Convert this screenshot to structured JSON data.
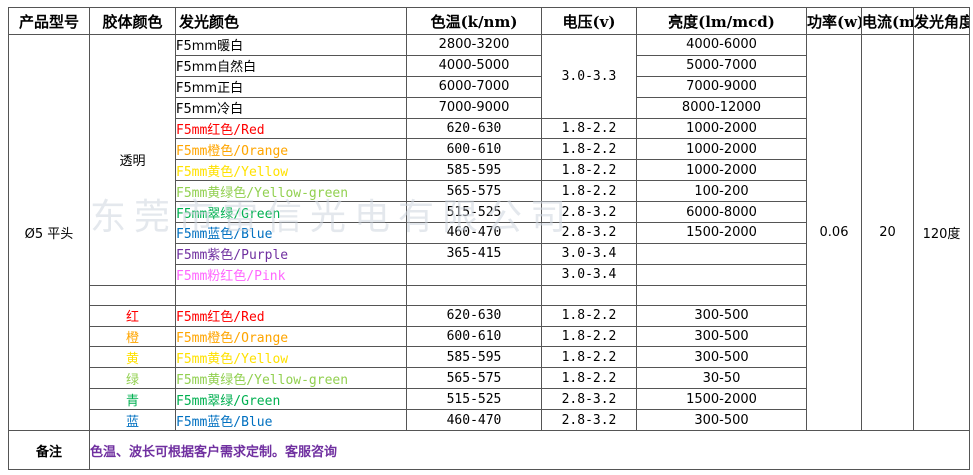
{
  "headers": [
    "产品型号",
    "胶体颜色",
    "发光颜色",
    "色温(k/nm)",
    "电压(v)",
    "亮度(lm/mcd)",
    "功率(w)",
    "电流(ma)",
    "发光角度"
  ],
  "model": "Ø5 平头",
  "body_color_group1": "透明",
  "white_rows": [
    {
      "name": "F5mm暖白",
      "temp": "2800-3200",
      "brightness": "4000-6000"
    },
    {
      "name": "F5mm自然白",
      "temp": "4000-5000",
      "brightness": "5000-7000"
    },
    {
      "name": "F5mm正白",
      "temp": "6000-7000",
      "brightness": "7000-9000"
    },
    {
      "name": "F5mm冷白",
      "temp": "7000-9000",
      "brightness": "8000-12000"
    }
  ],
  "white_voltage": "3.0-3.3",
  "color_rows_group1": [
    {
      "name": "F5mm红色/Red",
      "color": "#ff0000",
      "temp": "620-630",
      "voltage": "1.8-2.2",
      "brightness": "1000-2000"
    },
    {
      "name": "F5mm橙色/Orange",
      "color": "#ffa500",
      "temp": "600-610",
      "voltage": "1.8-2.2",
      "brightness": "1000-2000"
    },
    {
      "name": "F5mm黄色/Yellow",
      "color": "#ffe100",
      "temp": "585-595",
      "voltage": "1.8-2.2",
      "brightness": "1000-2000"
    },
    {
      "name": "F5mm黄绿色/Yellow-green",
      "color": "#92d050",
      "temp": "565-575",
      "voltage": "1.8-2.2",
      "brightness": "100-200"
    },
    {
      "name": "F5mm翠绿/Green",
      "color": "#00b050",
      "temp": "515-525",
      "voltage": "2.8-3.2",
      "brightness": "6000-8000"
    },
    {
      "name": "F5mm蓝色/Blue",
      "color": "#0070c0",
      "temp": "460-470",
      "voltage": "2.8-3.2",
      "brightness": "1500-2000"
    },
    {
      "name": "F5mm紫色/Purple",
      "color": "#7030a0",
      "temp": "365-415",
      "voltage": "3.0-3.4",
      "brightness": ""
    },
    {
      "name": "F5mm粉红色/Pink",
      "color": "#ff66ff",
      "temp": "",
      "voltage": "3.0-3.4",
      "brightness": ""
    }
  ],
  "power": "0.06",
  "current": "20",
  "angle": "120度",
  "color_rows_group2": [
    {
      "body": "红",
      "color": "#ff0000",
      "name": "F5mm红色/Red",
      "temp": "620-630",
      "voltage": "1.8-2.2",
      "brightness": "300-500"
    },
    {
      "body": "橙",
      "color": "#ffa500",
      "name": "F5mm橙色/Orange",
      "temp": "600-610",
      "voltage": "1.8-2.2",
      "brightness": "300-500"
    },
    {
      "body": "黄",
      "color": "#ffe100",
      "name": "F5mm黄色/Yellow",
      "temp": "585-595",
      "voltage": "1.8-2.2",
      "brightness": "300-500"
    },
    {
      "body": "绿",
      "color": "#92d050",
      "name": "F5mm黄绿色/Yellow-green",
      "temp": "565-575",
      "voltage": "1.8-2.2",
      "brightness": "30-50"
    },
    {
      "body": "青",
      "color": "#00b050",
      "name": "F5mm翠绿/Green",
      "temp": "515-525",
      "voltage": "2.8-3.2",
      "brightness": "1500-2000"
    },
    {
      "body": "蓝",
      "color": "#0070c0",
      "name": "F5mm蓝色/Blue",
      "temp": "460-470",
      "voltage": "2.8-3.2",
      "brightness": "300-500"
    }
  ],
  "note_label": "备注",
  "note_text": "色温、波长可根据客户需求定制。客服咨询",
  "note_color": "#7030a0",
  "watermark": "东莞市雷信光电有限公司"
}
